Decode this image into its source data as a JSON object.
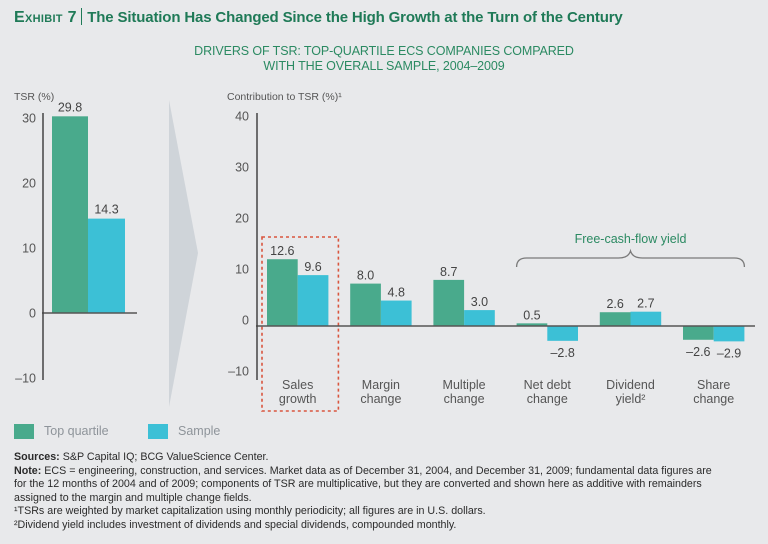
{
  "header": {
    "exhibit_label": "Exhibit 7",
    "title": "The Situation Has Changed Since the High Growth at the Turn of the Century",
    "subtitle_lines": [
      "DRIVERS OF TSR: TOP-QUARTILE ECS COMPANIES COMPARED",
      "WITH THE OVERALL SAMPLE, 2004–2009"
    ]
  },
  "colors": {
    "title": "#1f7a57",
    "subtitle": "#2b8a62",
    "top_quartile": "#49aa8c",
    "sample": "#3cc0d6",
    "highlight_box": "#d9553e",
    "transition_arrow": "#cfd4d9"
  },
  "legend": [
    {
      "label": "Top quartile",
      "color": "#49aa8c"
    },
    {
      "label": "Sample",
      "color": "#3cc0d6"
    }
  ],
  "chart_data": [
    {
      "type": "bar",
      "title": "",
      "xlabel": "",
      "ylabel": "TSR (%)",
      "categories": [
        ""
      ],
      "series": [
        {
          "name": "Top quartile",
          "values": [
            29.8
          ],
          "labels": [
            "29.8"
          ],
          "color": "#49aa8c"
        },
        {
          "name": "Sample",
          "values": [
            14.3
          ],
          "labels": [
            "14.3"
          ],
          "color": "#3cc0d6"
        }
      ],
      "ylim": [
        -10,
        30
      ],
      "yticks": [
        30,
        20,
        10,
        0,
        -10
      ],
      "ytick_labels": [
        "30",
        "20",
        "10",
        "0",
        "–10"
      ],
      "grid": false,
      "legend": "bottom-left"
    },
    {
      "type": "bar",
      "title": "",
      "xlabel": "",
      "ylabel": "Contribution to TSR (%)¹",
      "categories": [
        "Sales growth",
        "Margin change",
        "Multiple change",
        "Net debt change",
        "Dividend yield²",
        "Share change"
      ],
      "category_label_lines": [
        [
          "Sales",
          "growth"
        ],
        [
          "Margin",
          "change"
        ],
        [
          "Multiple",
          "change"
        ],
        [
          "Net debt",
          "change"
        ],
        [
          "Dividend",
          "yield²"
        ],
        [
          "Share",
          "change"
        ]
      ],
      "series": [
        {
          "name": "Top quartile",
          "values": [
            12.6,
            8.0,
            8.7,
            0.5,
            2.6,
            -2.6
          ],
          "labels": [
            "12.6",
            "8.0",
            "8.7",
            "0.5",
            "2.6",
            "–2.6"
          ],
          "color": "#49aa8c"
        },
        {
          "name": "Sample",
          "values": [
            9.6,
            4.8,
            3.0,
            -2.8,
            2.7,
            -2.9
          ],
          "labels": [
            "9.6",
            "4.8",
            "3.0",
            "–2.8",
            "2.7",
            "–2.9"
          ],
          "color": "#3cc0d6"
        }
      ],
      "ylim": [
        -10,
        40
      ],
      "yticks": [
        40,
        30,
        20,
        10,
        0,
        -10
      ],
      "ytick_labels": [
        "40",
        "30",
        "20",
        "10",
        "0",
        "–10"
      ],
      "grid": false,
      "legend": "bottom-left",
      "annotations": [
        {
          "type": "bracket",
          "text": "Free-cash-flow yield",
          "from_category": "Net debt change",
          "to_category": "Share change"
        }
      ],
      "highlight_category": "Sales growth"
    }
  ],
  "footnotes": {
    "sources": {
      "label": "Sources:",
      "text": " S&P Capital IQ; BCG ValueScience Center."
    },
    "note": {
      "label": "Note:",
      "lines": [
        " ECS = engineering, construction, and services. Market data as of December 31, 2004, and December 31, 2009; fundamental data figures are",
        "for the 12 months of 2004 and of 2009; components of TSR are multiplicative, but they are converted and shown here as additive with remainders",
        "assigned to the margin and multiple change fields."
      ]
    },
    "numbered": [
      "¹TSRs are weighted by market capitalization using monthly periodicity; all figures are in U.S. dollars.",
      "²Dividend yield includes investment of dividends and special dividends, compounded monthly."
    ]
  }
}
